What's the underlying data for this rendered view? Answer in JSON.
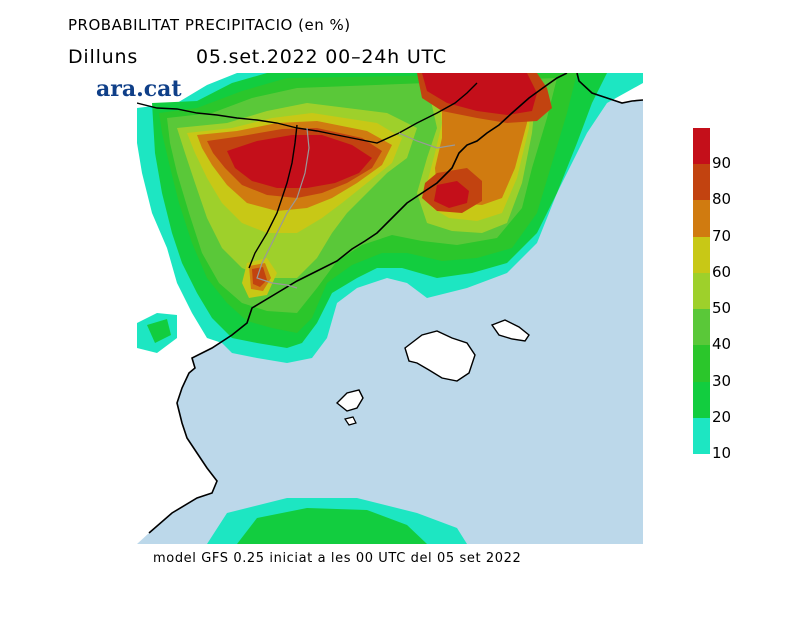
{
  "header": {
    "title": "PROBABILITAT PRECIPITACIO (en %)",
    "day": "Dilluns",
    "valid_period": "05.set.2022 00–24h UTC"
  },
  "logo": {
    "text": "ara.cat",
    "color": "#0f3f88"
  },
  "footer": {
    "text": "model GFS 0.25 iniciat a les 00 UTC del 05 set 2022"
  },
  "map": {
    "sea_color": "#bcd8ea",
    "land_color": "#ffffff",
    "border_color": "#999999",
    "coast_color": "#000000"
  },
  "legend": {
    "unit": "%",
    "classes": [
      {
        "from": 10,
        "to": 20,
        "color": "#1de6c2"
      },
      {
        "from": 20,
        "to": 30,
        "color": "#12cd3f"
      },
      {
        "from": 30,
        "to": 40,
        "color": "#2bc62b"
      },
      {
        "from": 40,
        "to": 50,
        "color": "#5ac839"
      },
      {
        "from": 50,
        "to": 60,
        "color": "#9ed02b"
      },
      {
        "from": 60,
        "to": 70,
        "color": "#c8c816"
      },
      {
        "from": 70,
        "to": 80,
        "color": "#d07b10"
      },
      {
        "from": 80,
        "to": 90,
        "color": "#c24310"
      },
      {
        "from": 90,
        "to": 100,
        "color": "#c40f1a"
      }
    ],
    "tick_labels": [
      "10",
      "20",
      "30",
      "40",
      "50",
      "60",
      "70",
      "80",
      "90"
    ]
  }
}
